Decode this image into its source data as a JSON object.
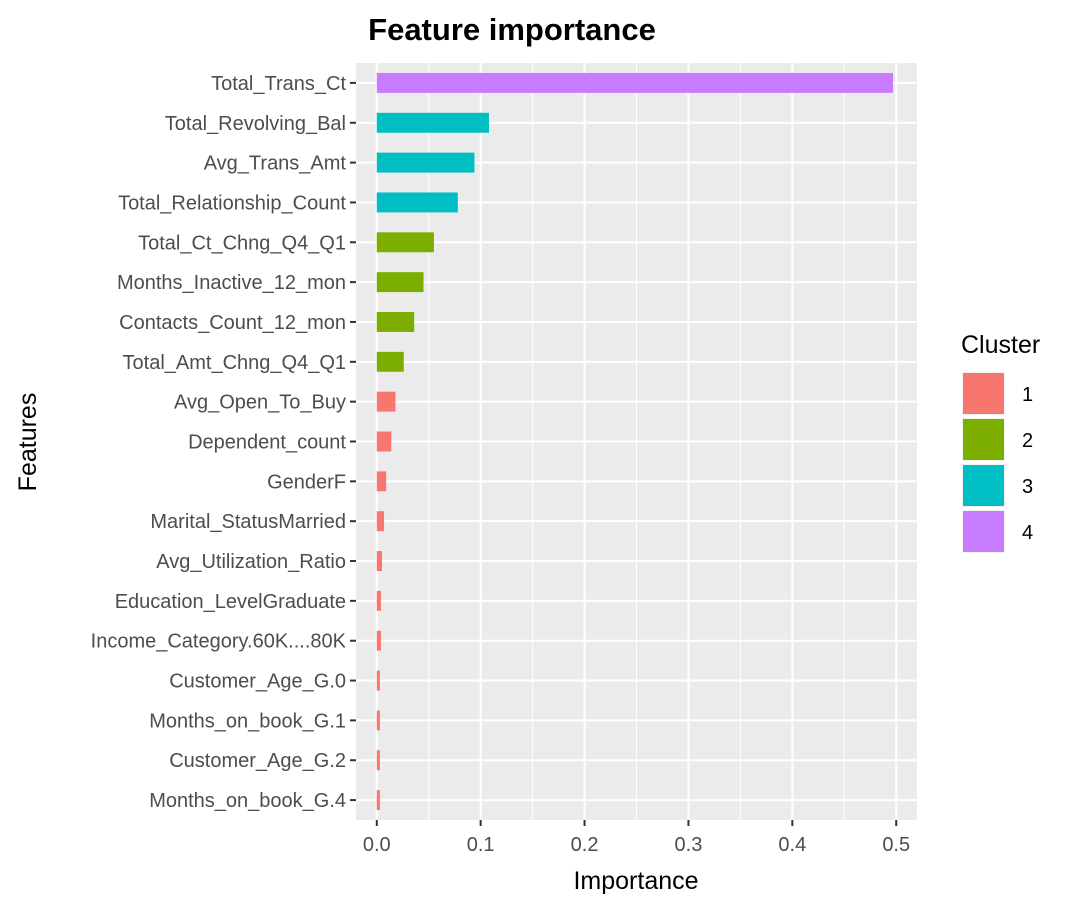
{
  "chart_data": {
    "type": "bar",
    "orientation": "horizontal",
    "title": "Feature importance",
    "xlabel": "Importance",
    "ylabel": "Features",
    "xlim": [
      -0.02,
      0.52
    ],
    "xticks": [
      0.0,
      0.1,
      0.2,
      0.3,
      0.4,
      0.5
    ],
    "xtick_labels": [
      "0.0",
      "0.1",
      "0.2",
      "0.3",
      "0.4",
      "0.5"
    ],
    "grid": true,
    "legend": {
      "title": "Cluster",
      "position": "right",
      "entries": [
        {
          "label": "1",
          "color": "#F8766D"
        },
        {
          "label": "2",
          "color": "#7CAE00"
        },
        {
          "label": "3",
          "color": "#00BFC4"
        },
        {
          "label": "4",
          "color": "#C77CFF"
        }
      ]
    },
    "categories": [
      "Total_Trans_Ct",
      "Total_Revolving_Bal",
      "Avg_Trans_Amt",
      "Total_Relationship_Count",
      "Total_Ct_Chng_Q4_Q1",
      "Months_Inactive_12_mon",
      "Contacts_Count_12_mon",
      "Total_Amt_Chng_Q4_Q1",
      "Avg_Open_To_Buy",
      "Dependent_count",
      "GenderF",
      "Marital_StatusMarried",
      "Avg_Utilization_Ratio",
      "Education_LevelGraduate",
      "Income_Category.60K....80K",
      "Customer_Age_G.0",
      "Months_on_book_G.1",
      "Customer_Age_G.2",
      "Months_on_book_G.4"
    ],
    "values": [
      0.497,
      0.108,
      0.094,
      0.078,
      0.055,
      0.045,
      0.036,
      0.026,
      0.018,
      0.014,
      0.009,
      0.007,
      0.005,
      0.004,
      0.004,
      0.003,
      0.003,
      0.003,
      0.003
    ],
    "clusters": [
      "4",
      "3",
      "3",
      "3",
      "2",
      "2",
      "2",
      "2",
      "1",
      "1",
      "1",
      "1",
      "1",
      "1",
      "1",
      "1",
      "1",
      "1",
      "1"
    ],
    "colors": {
      "panel_bg": "#EBEBEB",
      "grid": "#FFFFFF",
      "tick": "#333333"
    }
  }
}
